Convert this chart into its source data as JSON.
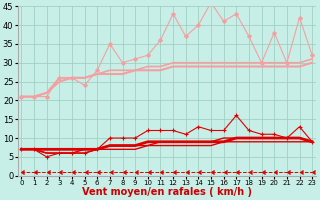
{
  "x": [
    0,
    1,
    2,
    3,
    4,
    5,
    6,
    7,
    8,
    9,
    10,
    11,
    12,
    13,
    14,
    15,
    16,
    17,
    18,
    19,
    20,
    21,
    22,
    23
  ],
  "series": [
    {
      "name": "light_zigzag",
      "color": "#f4a0a0",
      "linewidth": 0.8,
      "marker": "D",
      "markersize": 2,
      "linestyle": "-",
      "y": [
        21,
        21,
        21,
        26,
        26,
        24,
        28,
        35,
        30,
        31,
        32,
        36,
        43,
        37,
        40,
        46,
        41,
        43,
        37,
        30,
        38,
        30,
        42,
        32
      ]
    },
    {
      "name": "light_smooth1",
      "color": "#f4a0a0",
      "linewidth": 1.2,
      "marker": null,
      "markersize": 0,
      "linestyle": "-",
      "y": [
        21,
        21,
        22,
        26,
        26,
        26,
        27,
        28,
        28,
        28,
        29,
        29,
        30,
        30,
        30,
        30,
        30,
        30,
        30,
        30,
        30,
        30,
        30,
        31
      ]
    },
    {
      "name": "light_smooth2",
      "color": "#f4a0a0",
      "linewidth": 1.5,
      "marker": null,
      "markersize": 0,
      "linestyle": "-",
      "y": [
        21,
        21,
        22,
        25,
        26,
        26,
        27,
        27,
        27,
        28,
        28,
        28,
        29,
        29,
        29,
        29,
        29,
        29,
        29,
        29,
        29,
        29,
        29,
        30
      ]
    },
    {
      "name": "dark_zigzag",
      "color": "#dd0000",
      "linewidth": 0.8,
      "marker": "+",
      "markersize": 3,
      "linestyle": "-",
      "y": [
        7,
        7,
        5,
        6,
        6,
        6,
        7,
        10,
        10,
        10,
        12,
        12,
        12,
        11,
        13,
        12,
        12,
        16,
        12,
        11,
        11,
        10,
        13,
        9
      ]
    },
    {
      "name": "dark_smooth_thick",
      "color": "#dd0000",
      "linewidth": 2.0,
      "marker": null,
      "markersize": 0,
      "linestyle": "-",
      "y": [
        7,
        7,
        7,
        7,
        7,
        7,
        7,
        8,
        8,
        8,
        9,
        9,
        9,
        9,
        9,
        9,
        9,
        10,
        10,
        10,
        10,
        10,
        10,
        9
      ]
    },
    {
      "name": "dark_smooth2",
      "color": "#dd0000",
      "linewidth": 1.0,
      "marker": null,
      "markersize": 0,
      "linestyle": "-",
      "y": [
        7,
        7,
        6,
        6,
        6,
        7,
        7,
        8,
        8,
        8,
        8,
        9,
        9,
        9,
        9,
        9,
        10,
        10,
        10,
        10,
        10,
        10,
        10,
        9
      ]
    },
    {
      "name": "dark_smooth3",
      "color": "#dd0000",
      "linewidth": 1.0,
      "marker": null,
      "markersize": 0,
      "linestyle": "-",
      "y": [
        7,
        7,
        6,
        6,
        6,
        6,
        7,
        7,
        7,
        7,
        8,
        8,
        8,
        8,
        8,
        8,
        9,
        9,
        9,
        9,
        9,
        9,
        9,
        9
      ]
    },
    {
      "name": "dashed_arrow_bottom",
      "color": "#dd0000",
      "linewidth": 0.7,
      "marker": 4,
      "markersize": 3,
      "linestyle": "--",
      "y": [
        1,
        1,
        1,
        1,
        1,
        1,
        1,
        1,
        1,
        1,
        1,
        1,
        1,
        1,
        1,
        1,
        1,
        1,
        1,
        1,
        1,
        1,
        1,
        1
      ]
    }
  ],
  "xlabel": "Vent moyen/en rafales ( km/h )",
  "xlim": [
    -0.3,
    23.3
  ],
  "ylim": [
    0,
    45
  ],
  "yticks": [
    0,
    5,
    10,
    15,
    20,
    25,
    30,
    35,
    40,
    45
  ],
  "xticks": [
    0,
    1,
    2,
    3,
    4,
    5,
    6,
    7,
    8,
    9,
    10,
    11,
    12,
    13,
    14,
    15,
    16,
    17,
    18,
    19,
    20,
    21,
    22,
    23
  ],
  "bg_color": "#c8eee8",
  "grid_color": "#99ccbb",
  "xlabel_color": "#cc0000",
  "xlabel_fontsize": 7,
  "tick_fontsize_x": 5,
  "tick_fontsize_y": 6
}
